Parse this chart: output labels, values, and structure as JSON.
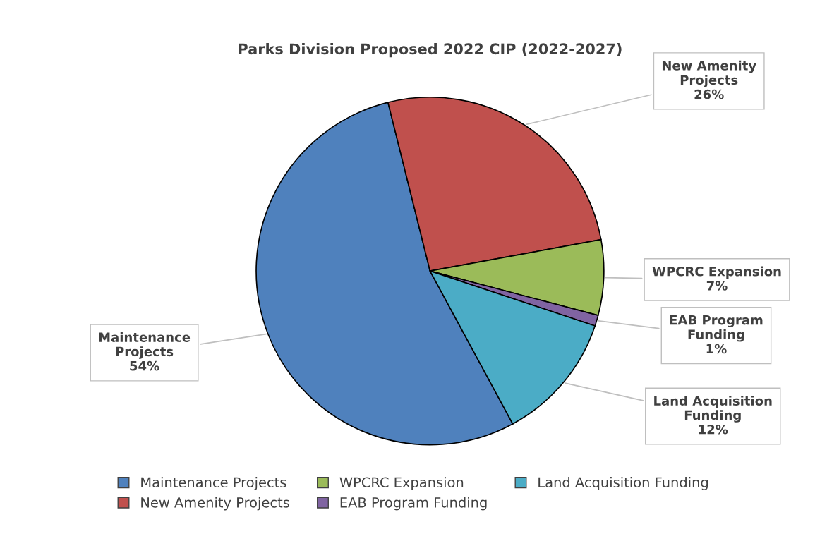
{
  "chart_data": {
    "type": "pie",
    "title": "Parks Division Proposed 2022 CIP (2022-2027)",
    "categories": [
      "Maintenance Projects",
      "New Amenity Projects",
      "WPCRC Expansion",
      "EAB Program Funding",
      "Land Acquisition Funding"
    ],
    "values": [
      54,
      26,
      7,
      1,
      12
    ],
    "colors": [
      "#4f81bd",
      "#c0504d",
      "#9bbb59",
      "#8064a2",
      "#4bacc6"
    ],
    "value_labels": [
      "54%",
      "26%",
      "7%",
      "1%",
      "12%"
    ],
    "legend": "bottom"
  }
}
